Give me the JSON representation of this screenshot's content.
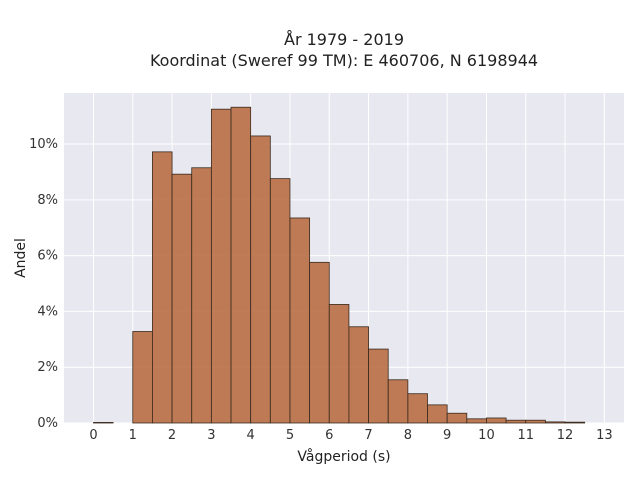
{
  "chart_data": {
    "type": "bar",
    "title_line1": "År 1979 - 2019",
    "title_line2": "Koordinat (Sweref 99 TM): E 460706, N 6198944",
    "xlabel": "Vågperiod (s)",
    "ylabel": "Andel",
    "xlim": [
      -0.75,
      13.5
    ],
    "ylim": [
      0,
      0.1183
    ],
    "x_ticks": [
      0,
      1,
      2,
      3,
      4,
      5,
      6,
      7,
      8,
      9,
      10,
      11,
      12,
      13
    ],
    "y_ticks": [
      0,
      0.02,
      0.04,
      0.06,
      0.08,
      0.1
    ],
    "y_tick_labels": [
      "0%",
      "2%",
      "4%",
      "6%",
      "8%",
      "10%"
    ],
    "grid": true,
    "bin_width": 0.5,
    "bins": [
      {
        "start": 0.0,
        "value": 0.0002
      },
      {
        "start": 0.5,
        "value": 0.0
      },
      {
        "start": 1.0,
        "value": 0.0328
      },
      {
        "start": 1.5,
        "value": 0.0972
      },
      {
        "start": 2.0,
        "value": 0.0892
      },
      {
        "start": 2.5,
        "value": 0.0915
      },
      {
        "start": 3.0,
        "value": 0.1125
      },
      {
        "start": 3.5,
        "value": 0.1132
      },
      {
        "start": 4.0,
        "value": 0.1029
      },
      {
        "start": 4.5,
        "value": 0.0876
      },
      {
        "start": 5.0,
        "value": 0.0735
      },
      {
        "start": 5.5,
        "value": 0.0576
      },
      {
        "start": 6.0,
        "value": 0.0425
      },
      {
        "start": 6.5,
        "value": 0.0345
      },
      {
        "start": 7.0,
        "value": 0.0265
      },
      {
        "start": 7.5,
        "value": 0.0155
      },
      {
        "start": 8.0,
        "value": 0.0105
      },
      {
        "start": 8.5,
        "value": 0.0065
      },
      {
        "start": 9.0,
        "value": 0.0035
      },
      {
        "start": 9.5,
        "value": 0.0015
      },
      {
        "start": 10.0,
        "value": 0.0018
      },
      {
        "start": 10.5,
        "value": 0.001
      },
      {
        "start": 11.0,
        "value": 0.001
      },
      {
        "start": 11.5,
        "value": 0.0004
      },
      {
        "start": 12.0,
        "value": 0.0003
      }
    ],
    "colors": {
      "bar_fill": "#b5663a",
      "bar_edge": "#3a2a1e",
      "plot_background": "#e8e8f0",
      "grid": "#ffffff"
    }
  }
}
